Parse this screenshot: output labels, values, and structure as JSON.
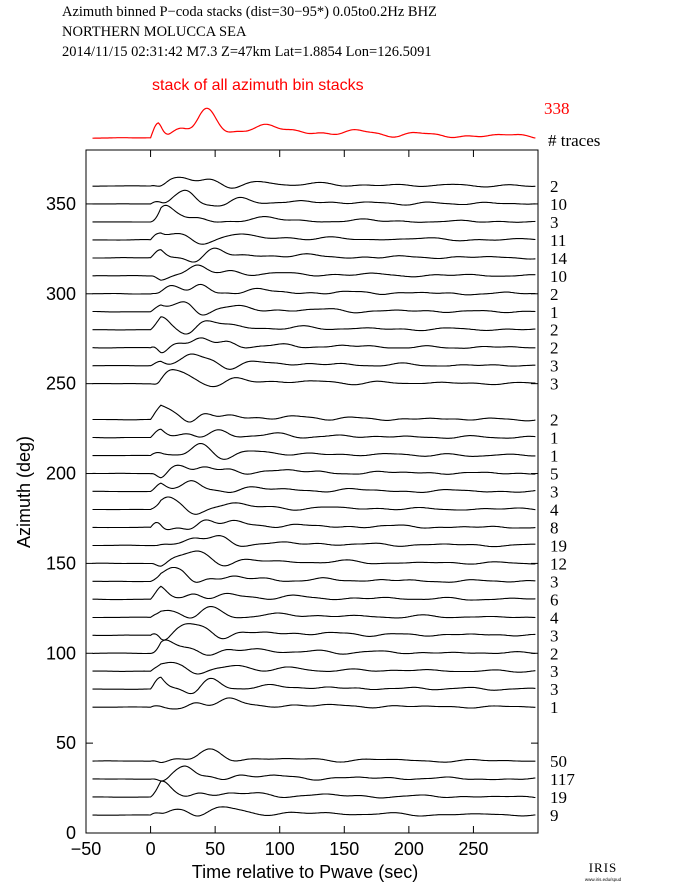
{
  "header": {
    "line1": "Azimuth binned P−coda stacks (dist=30−95*)  0.05to0.2Hz  BHZ",
    "line2": "NORTHERN MOLUCCA SEA",
    "line3": "2014/11/15  02:31:42  M7.3  Z=47km Lat=1.8854 Lon=126.5091"
  },
  "logo": {
    "text": "IRIS",
    "subtext": "www.iris.edu/spud"
  },
  "chart_data": {
    "type": "line",
    "title": "stack of all azimuth bin stacks",
    "total_traces_label": "338",
    "traces_header": "# traces",
    "xlabel": "Time relative to Pwave (sec)",
    "ylabel": "Azimuth (deg)",
    "xlim": [
      -50,
      300
    ],
    "ylim": [
      0,
      380
    ],
    "xticks": [
      -50,
      0,
      50,
      100,
      150,
      200,
      250
    ],
    "yticks": [
      0,
      50,
      100,
      150,
      200,
      250,
      300,
      350
    ],
    "colors": {
      "stack": "#ff0000",
      "trace": "#000000",
      "axis": "#000000"
    },
    "grid": false,
    "traces": [
      {
        "azimuth": 360,
        "count": "2"
      },
      {
        "azimuth": 350,
        "count": "10"
      },
      {
        "azimuth": 340,
        "count": "3"
      },
      {
        "azimuth": 330,
        "count": "11"
      },
      {
        "azimuth": 320,
        "count": "14"
      },
      {
        "azimuth": 310,
        "count": "10"
      },
      {
        "azimuth": 300,
        "count": "2"
      },
      {
        "azimuth": 290,
        "count": "1"
      },
      {
        "azimuth": 280,
        "count": "2"
      },
      {
        "azimuth": 270,
        "count": "2"
      },
      {
        "azimuth": 260,
        "count": "3"
      },
      {
        "azimuth": 250,
        "count": "3"
      },
      {
        "azimuth": 230,
        "count": "2"
      },
      {
        "azimuth": 220,
        "count": "1"
      },
      {
        "azimuth": 210,
        "count": "1"
      },
      {
        "azimuth": 200,
        "count": "5"
      },
      {
        "azimuth": 190,
        "count": "3"
      },
      {
        "azimuth": 180,
        "count": "4"
      },
      {
        "azimuth": 170,
        "count": "8"
      },
      {
        "azimuth": 160,
        "count": "19"
      },
      {
        "azimuth": 150,
        "count": "12"
      },
      {
        "azimuth": 140,
        "count": "3"
      },
      {
        "azimuth": 130,
        "count": "6"
      },
      {
        "azimuth": 120,
        "count": "4"
      },
      {
        "azimuth": 110,
        "count": "3"
      },
      {
        "azimuth": 100,
        "count": "2"
      },
      {
        "azimuth": 90,
        "count": "3"
      },
      {
        "azimuth": 80,
        "count": "3"
      },
      {
        "azimuth": 70,
        "count": "1"
      },
      {
        "azimuth": 40,
        "count": "50"
      },
      {
        "azimuth": 30,
        "count": "117"
      },
      {
        "azimuth": 20,
        "count": "19"
      },
      {
        "azimuth": 10,
        "count": "9"
      }
    ]
  }
}
